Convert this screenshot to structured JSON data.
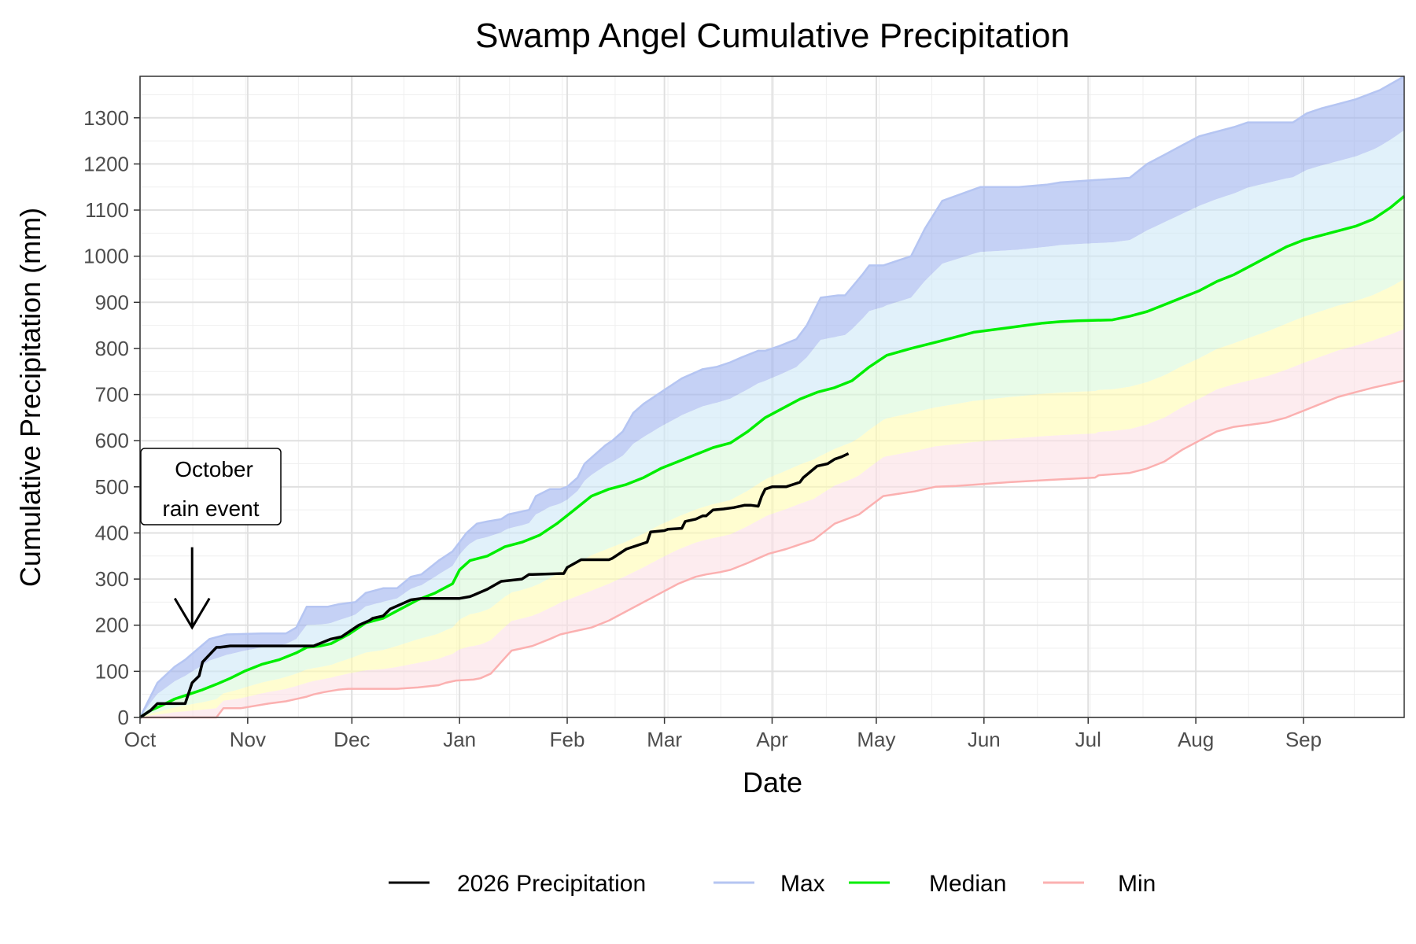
{
  "chart_data": {
    "type": "line",
    "title": "Swamp Angel Cumulative Precipitation",
    "xlabel": "Date",
    "ylabel": "Cumulative Precipitation (mm)",
    "x_month_labels": [
      "Oct",
      "Nov",
      "Dec",
      "Jan",
      "Feb",
      "Mar",
      "Apr",
      "May",
      "Jun",
      "Jul",
      "Aug",
      "Sep"
    ],
    "y_ticks": [
      0,
      100,
      200,
      300,
      400,
      500,
      600,
      700,
      800,
      900,
      1000,
      1100,
      1200,
      1300
    ],
    "ylim": [
      0,
      1390
    ],
    "x_unit": "days since Oct 1",
    "xlim": [
      0,
      364
    ],
    "grid": true,
    "legend_position": "bottom",
    "series": [
      {
        "name": "2026 Precipitation",
        "color": "#000000",
        "x": [
          0,
          3,
          5,
          7,
          13,
          15,
          17,
          18,
          22,
          23,
          26,
          28,
          32,
          40,
          50,
          55,
          58,
          63,
          66,
          67,
          70,
          72,
          78,
          81,
          82,
          86,
          89,
          92,
          95,
          96,
          100,
          104,
          110,
          112,
          113,
          121,
          122,
          123,
          127,
          132,
          135,
          136,
          140,
          146,
          147,
          151,
          152,
          156,
          157,
          160,
          162,
          163,
          165,
          168,
          171,
          174,
          176,
          178,
          179,
          180,
          182,
          186,
          190,
          191,
          195,
          198,
          200,
          202,
          204
        ],
        "values": [
          0,
          15,
          30,
          30,
          30,
          75,
          90,
          120,
          152,
          152,
          155,
          155,
          155,
          155,
          155,
          170,
          175,
          200,
          210,
          215,
          220,
          235,
          255,
          258,
          258,
          258,
          258,
          258,
          262,
          265,
          278,
          295,
          300,
          310,
          310,
          312,
          312,
          325,
          342,
          342,
          342,
          345,
          365,
          380,
          402,
          405,
          408,
          410,
          425,
          430,
          437,
          437,
          450,
          452,
          455,
          460,
          460,
          458,
          480,
          495,
          500,
          500,
          510,
          520,
          545,
          550,
          560,
          565,
          572
        ]
      },
      {
        "name": "Max",
        "color": "#b5c5f2",
        "x": [
          0,
          2,
          5,
          10,
          13,
          20,
          25,
          35,
          42,
          45,
          48,
          54,
          57,
          62,
          65,
          70,
          74,
          78,
          81,
          86,
          90,
          92,
          94,
          97,
          100,
          104,
          106,
          112,
          114,
          118,
          121,
          123,
          126,
          128,
          131,
          134,
          136,
          139,
          142,
          145,
          149,
          151,
          156,
          159,
          162,
          166,
          170,
          173,
          178,
          180,
          184,
          189,
          192,
          196,
          201,
          203,
          208,
          210,
          214,
          222,
          226,
          231,
          242,
          253,
          261,
          265,
          275,
          285,
          290,
          295,
          300,
          305,
          315,
          319,
          332,
          336,
          340,
          345,
          350,
          357,
          364
        ],
        "values": [
          0,
          30,
          75,
          110,
          125,
          170,
          180,
          182,
          182,
          195,
          240,
          240,
          245,
          250,
          270,
          280,
          280,
          305,
          310,
          340,
          360,
          380,
          400,
          420,
          425,
          430,
          440,
          450,
          480,
          495,
          495,
          500,
          520,
          550,
          570,
          590,
          600,
          620,
          660,
          680,
          700,
          710,
          735,
          745,
          755,
          760,
          770,
          780,
          795,
          795,
          805,
          820,
          850,
          910,
          915,
          915,
          960,
          980,
          980,
          1000,
          1060,
          1120,
          1150,
          1150,
          1155,
          1160,
          1165,
          1170,
          1200,
          1220,
          1240,
          1260,
          1280,
          1290,
          1290,
          1310,
          1320,
          1330,
          1340,
          1360,
          1390
        ]
      },
      {
        "name": "Median",
        "color": "#00ee00",
        "x": [
          0,
          3,
          6,
          10,
          14,
          18,
          22,
          26,
          30,
          35,
          40,
          45,
          48,
          52,
          55,
          60,
          65,
          70,
          75,
          80,
          85,
          90,
          92,
          95,
          100,
          105,
          110,
          115,
          120,
          125,
          130,
          135,
          140,
          145,
          150,
          155,
          160,
          165,
          170,
          175,
          180,
          185,
          190,
          195,
          200,
          205,
          210,
          215,
          222,
          230,
          240,
          250,
          255,
          260,
          265,
          270,
          280,
          285,
          290,
          295,
          300,
          305,
          310,
          315,
          320,
          325,
          330,
          335,
          340,
          345,
          350,
          355,
          360,
          364
        ],
        "values": [
          0,
          15,
          25,
          40,
          50,
          60,
          72,
          85,
          100,
          115,
          125,
          140,
          152,
          155,
          160,
          180,
          205,
          215,
          235,
          255,
          270,
          290,
          320,
          340,
          350,
          370,
          380,
          395,
          420,
          450,
          480,
          495,
          505,
          520,
          540,
          555,
          570,
          585,
          595,
          620,
          650,
          670,
          690,
          705,
          715,
          730,
          760,
          785,
          800,
          815,
          835,
          845,
          850,
          855,
          858,
          860,
          862,
          870,
          880,
          895,
          910,
          925,
          945,
          960,
          980,
          1000,
          1020,
          1035,
          1045,
          1055,
          1065,
          1080,
          1105,
          1130
        ]
      },
      {
        "name": "Min",
        "color": "#fbb0b0",
        "x": [
          0,
          15,
          22,
          24,
          29,
          37,
          42,
          48,
          50,
          53,
          57,
          60,
          65,
          74,
          80,
          86,
          88,
          91,
          96,
          98,
          101,
          104,
          107,
          110,
          113,
          118,
          121,
          124,
          130,
          135,
          140,
          145,
          150,
          155,
          160,
          163,
          167,
          170,
          175,
          178,
          181,
          186,
          190,
          194,
          200,
          207,
          214,
          223,
          229,
          235,
          241,
          250,
          262,
          275,
          276,
          285,
          290,
          295,
          300,
          305,
          310,
          315,
          320,
          325,
          330,
          335,
          340,
          345,
          350,
          355,
          364
        ],
        "values": [
          0,
          0,
          0,
          20,
          20,
          30,
          35,
          45,
          50,
          55,
          60,
          62,
          62,
          62,
          65,
          70,
          75,
          80,
          82,
          85,
          95,
          120,
          145,
          150,
          155,
          170,
          180,
          185,
          195,
          210,
          230,
          250,
          270,
          290,
          305,
          310,
          315,
          320,
          335,
          345,
          355,
          365,
          375,
          385,
          420,
          440,
          480,
          490,
          500,
          502,
          505,
          510,
          515,
          520,
          525,
          530,
          540,
          555,
          580,
          600,
          620,
          630,
          635,
          640,
          650,
          665,
          680,
          695,
          705,
          715,
          730
        ]
      }
    ],
    "bands": [
      {
        "name": "Max–Q75",
        "color": "#9fb2ef",
        "upper": "Max",
        "lower": "Q75"
      },
      {
        "name": "Q75–Median",
        "color": "#cde8f7",
        "upper": "Q75",
        "lower": "Median"
      },
      {
        "name": "Median–Q25",
        "color": "#d9f8d9",
        "upper": "Median",
        "lower": "Q25"
      },
      {
        "name": "Q25–Q10",
        "color": "#fffcb0",
        "upper": "Q25",
        "lower": "Q10"
      },
      {
        "name": "Q10–Min",
        "color": "#fcdfe4",
        "upper": "Q10",
        "lower": "Min"
      }
    ],
    "annotation": {
      "text_line1": "October",
      "text_line2": "rain event",
      "arrow_target_x": 15,
      "arrow_target_y": 195
    }
  },
  "legend": {
    "items": [
      {
        "label": "2026 Precipitation",
        "color": "#000000"
      },
      {
        "label": "Max",
        "color": "#b5c5f2"
      },
      {
        "label": "Median",
        "color": "#00ee00"
      },
      {
        "label": "Min",
        "color": "#fbb0b0"
      }
    ]
  }
}
